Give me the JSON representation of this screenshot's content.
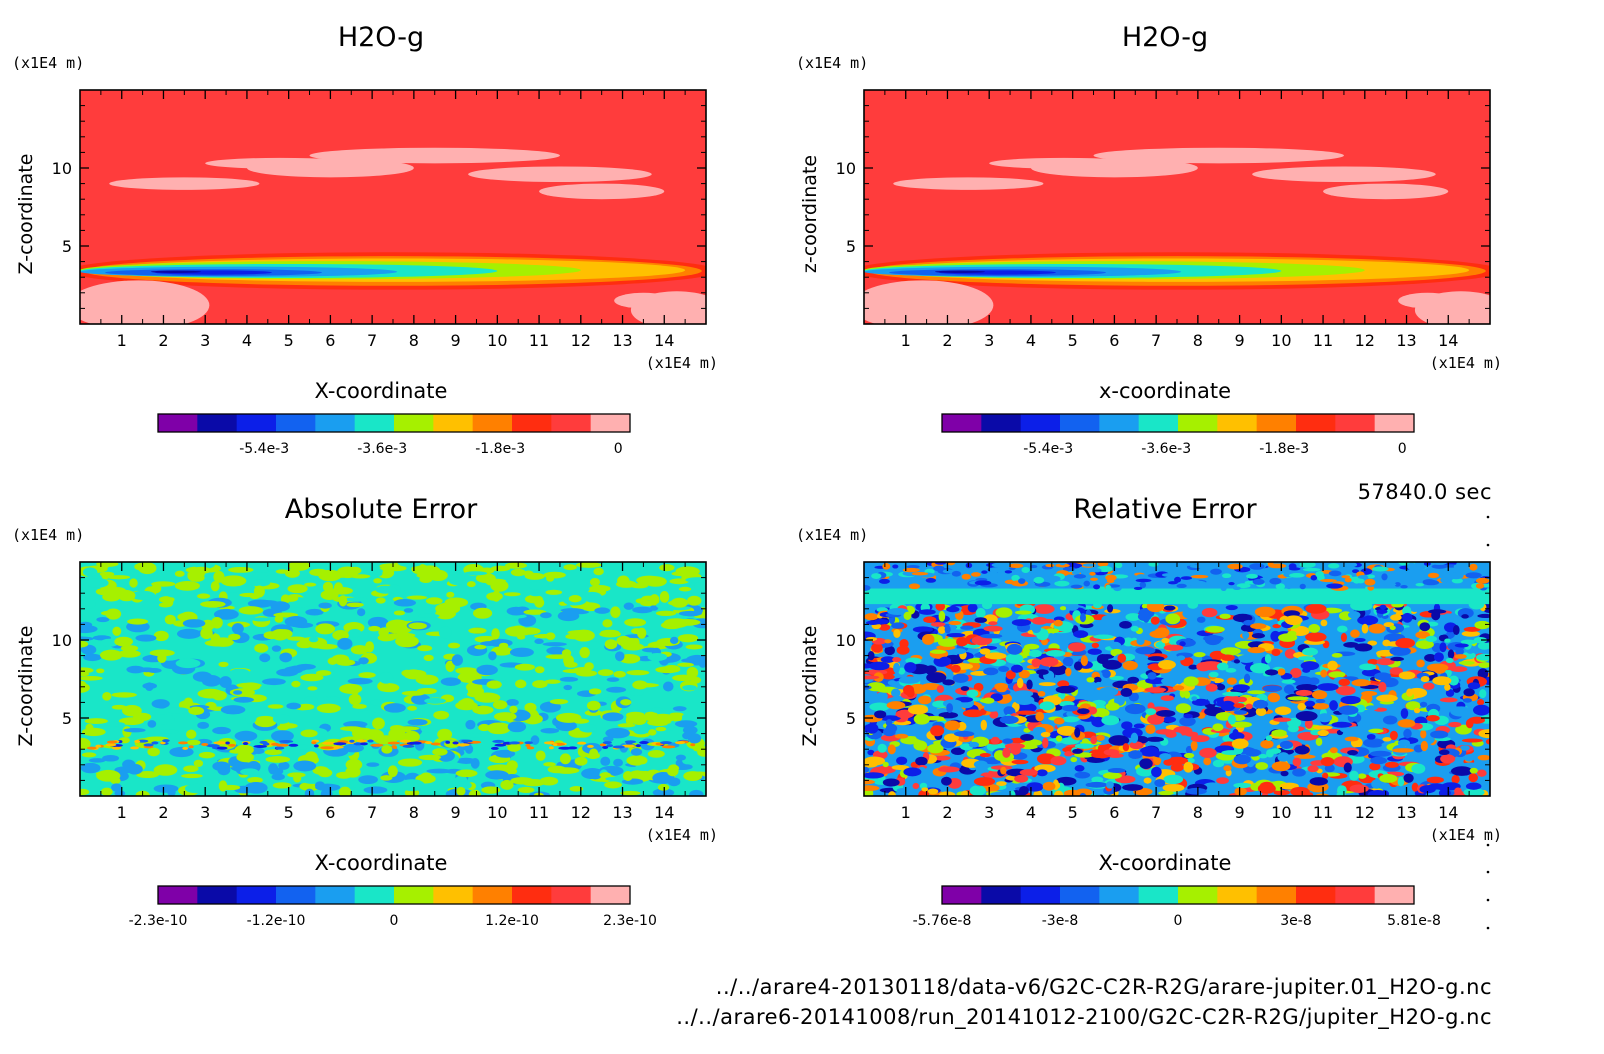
{
  "timestamp": "57840.0 sec",
  "files": [
    "../../arare4-20130118/data-v6/G2C-C2R-R2G/arare-jupiter.01_H2O-g.nc",
    "../../arare6-20141008/run_20141012-2100/G2C-C2R-R2G/jupiter_H2O-g.nc"
  ],
  "colors": {
    "levels": [
      "#7f00a8",
      "#0a0aa8",
      "#0c1fe8",
      "#1262f0",
      "#1a9ef0",
      "#19e6c8",
      "#a6f000",
      "#ffc000",
      "#ff8000",
      "#ff2d10",
      "#ff3c3c",
      "#ffb0b0"
    ]
  },
  "chart_data": [
    {
      "type": "heatmap",
      "panel": "top-left",
      "title": "H2O-g",
      "xlabel": "X-coordinate",
      "ylabel": "Z-coordinate",
      "x_unit": "(x1E4 m)",
      "y_unit": "(x1E4 m)",
      "xlim": [
        0,
        15
      ],
      "ylim": [
        0,
        15
      ],
      "xticks": [
        "1",
        "2",
        "3",
        "4",
        "5",
        "6",
        "7",
        "8",
        "9",
        "10",
        "11",
        "12",
        "13",
        "14"
      ],
      "yticks": [
        "5",
        "10"
      ],
      "colorbar_ticks": [
        "-5.4e-3",
        "-3.6e-3",
        "-1.8e-3",
        "0"
      ],
      "pattern": "field"
    },
    {
      "type": "heatmap",
      "panel": "top-right",
      "title": "H2O-g",
      "xlabel": "x-coordinate",
      "ylabel": "z-coordinate",
      "x_unit": "(x1E4 m)",
      "y_unit": "(x1E4 m)",
      "xlim": [
        0,
        15
      ],
      "ylim": [
        0,
        15
      ],
      "xticks": [
        "1",
        "2",
        "3",
        "4",
        "5",
        "6",
        "7",
        "8",
        "9",
        "10",
        "11",
        "12",
        "13",
        "14"
      ],
      "yticks": [
        "5",
        "10"
      ],
      "colorbar_ticks": [
        "-5.4e-3",
        "-3.6e-3",
        "-1.8e-3",
        "0"
      ],
      "pattern": "field"
    },
    {
      "type": "heatmap",
      "panel": "bottom-left",
      "title": "Absolute Error",
      "xlabel": "X-coordinate",
      "ylabel": "Z-coordinate",
      "x_unit": "(x1E4 m)",
      "y_unit": "(x1E4 m)",
      "xlim": [
        0,
        15
      ],
      "ylim": [
        0,
        15
      ],
      "xticks": [
        "1",
        "2",
        "3",
        "4",
        "5",
        "6",
        "7",
        "8",
        "9",
        "10",
        "11",
        "12",
        "13",
        "14"
      ],
      "yticks": [
        "5",
        "10"
      ],
      "colorbar_ticks": [
        "-2.3e-10",
        "-1.2e-10",
        "0",
        "1.2e-10",
        "2.3e-10"
      ],
      "pattern": "abs_noise"
    },
    {
      "type": "heatmap",
      "panel": "bottom-right",
      "title": "Relative Error",
      "xlabel": "X-coordinate",
      "ylabel": "Z-coordinate",
      "x_unit": "(x1E4 m)",
      "y_unit": "(x1E4 m)",
      "xlim": [
        0,
        15
      ],
      "ylim": [
        0,
        15
      ],
      "xticks": [
        "1",
        "2",
        "3",
        "4",
        "5",
        "6",
        "7",
        "8",
        "9",
        "10",
        "11",
        "12",
        "13",
        "14"
      ],
      "yticks": [
        "5",
        "10"
      ],
      "colorbar_ticks": [
        "-5.76e-8",
        "-3e-8",
        "0",
        "3e-8",
        "5.81e-8"
      ],
      "pattern": "rel_noise"
    }
  ]
}
